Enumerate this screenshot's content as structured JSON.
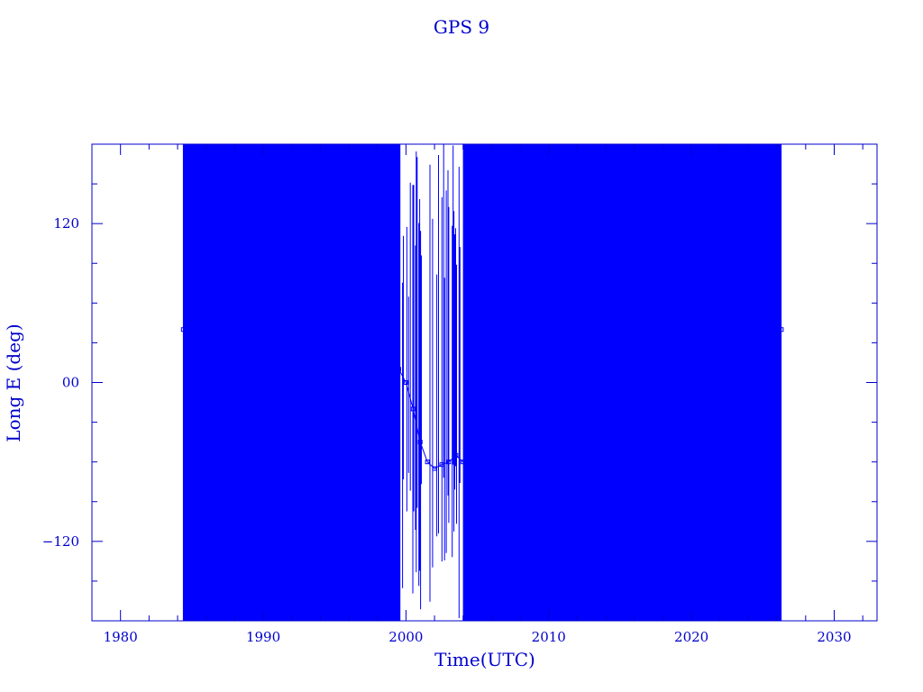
{
  "chart_data": {
    "type": "line",
    "title": "GPS 9",
    "xlabel": "Time(UTC)",
    "ylabel": "Long E (deg)",
    "xlim": [
      1978,
      2033
    ],
    "ylim": [
      -180,
      180
    ],
    "x_ticks": [
      {
        "value": 1980,
        "label": "1980"
      },
      {
        "value": 1990,
        "label": "1990"
      },
      {
        "value": 2000,
        "label": "2000"
      },
      {
        "value": 2010,
        "label": "2010"
      },
      {
        "value": 2020,
        "label": "2020"
      },
      {
        "value": 2030,
        "label": "2030"
      }
    ],
    "y_ticks": [
      {
        "value": 120,
        "label": "120"
      },
      {
        "value": 0,
        "label": "00"
      },
      {
        "value": -120,
        "label": "−120"
      }
    ],
    "grid": false,
    "legend": "none",
    "marker": "square",
    "colors": {
      "axis": "#0000cc",
      "series": "#0000ff"
    },
    "series": [
      {
        "x": [
          1984.4,
          1985.5,
          1986.5,
          1987.5,
          1988.5,
          1989.5,
          1990.5,
          1991.5,
          1992.5,
          1993.5,
          1994.5,
          1995.0,
          1995.5,
          1996.0,
          1996.5,
          1997.0,
          1997.5,
          1998.0,
          1998.5,
          1999.0,
          1999.5,
          2000.0,
          2000.5,
          2001.0,
          2001.5,
          2002.0,
          2002.5,
          2003.0,
          2003.5,
          2004.0,
          2004.5,
          2005.0,
          2006.0,
          2007.0,
          2008.0,
          2009.0,
          2010.0,
          2011.0,
          2012.0,
          2013.0,
          2014.0,
          2015.0,
          2016.0,
          2017.0,
          2018.0,
          2019.0,
          2020.0,
          2021.0,
          2022.0,
          2023.0,
          2024.0,
          2025.0,
          2026.3
        ],
        "y": [
          40,
          39,
          38,
          37,
          36,
          36,
          40,
          40,
          42,
          42,
          150,
          140,
          125,
          120,
          100,
          90,
          70,
          55,
          40,
          20,
          10,
          0,
          -20,
          -45,
          -60,
          -65,
          -62,
          -60,
          -55,
          -60,
          -65,
          100,
          -60,
          80,
          -100,
          50,
          -120,
          120,
          -150,
          30,
          -100,
          150,
          -60,
          90,
          -140,
          60,
          -110,
          130,
          -90,
          20,
          -150,
          100,
          40
        ]
      }
    ]
  }
}
